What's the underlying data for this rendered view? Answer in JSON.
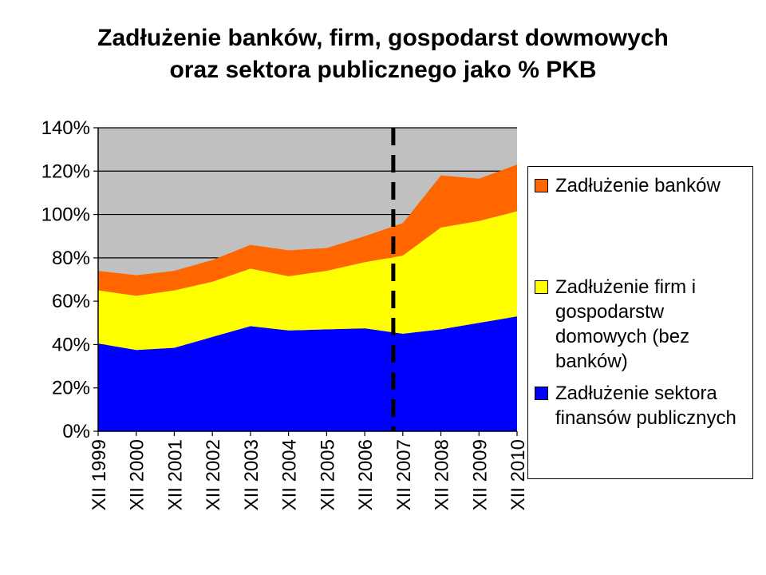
{
  "chart_data": {
    "type": "area",
    "stacked": true,
    "title": "Zadłużenie banków, firm, gospodarst dowmowych oraz sektora publicznego jako % PKB",
    "title_lines": [
      "Zadłużenie banków, firm, gospodarst dowmowych",
      "oraz sektora publicznego jako % PKB"
    ],
    "categories": [
      "XII 1999",
      "XII 2000",
      "XII 2001",
      "XII 2002",
      "XII 2003",
      "XII 2004",
      "XII 2005",
      "XII 2006",
      "XII 2007",
      "XII 2008",
      "XII 2009",
      "XII 2010"
    ],
    "series": [
      {
        "name": "Zadłużenie sektora finansów publicznych",
        "color": "#0000FF",
        "values": [
          40.5,
          37.5,
          38.5,
          43.5,
          48.5,
          46.5,
          47.0,
          47.5,
          45.0,
          47.0,
          50.0,
          53.0
        ]
      },
      {
        "name": "Zadłużenie firm i gospodarstw domowych (bez banków)",
        "color": "#FFFF00",
        "values": [
          24.5,
          25.0,
          26.5,
          25.5,
          26.5,
          25.0,
          27.0,
          30.5,
          36.0,
          47.0,
          47.0,
          48.5
        ]
      },
      {
        "name": "Zadłużenie banków",
        "color": "#FF6600",
        "values": [
          9.0,
          9.5,
          9.0,
          10.0,
          11.0,
          12.0,
          10.5,
          12.0,
          15.0,
          24.0,
          19.5,
          21.5
        ]
      }
    ],
    "legend_order": [
      2,
      1,
      0
    ],
    "ylim": [
      0,
      140
    ],
    "y_ticks": [
      0,
      20,
      40,
      60,
      80,
      100,
      120,
      140
    ],
    "y_tick_labels": [
      "0%",
      "20%",
      "40%",
      "60%",
      "80%",
      "100%",
      "120%",
      "140%"
    ],
    "gridlines": true,
    "plot_background": "#C0C0C0",
    "marker_line": {
      "style": "dashed",
      "color": "#000000",
      "position_between": [
        "XII 2006",
        "XII 2007"
      ],
      "fraction": 0.75
    },
    "legend_position": "right"
  }
}
